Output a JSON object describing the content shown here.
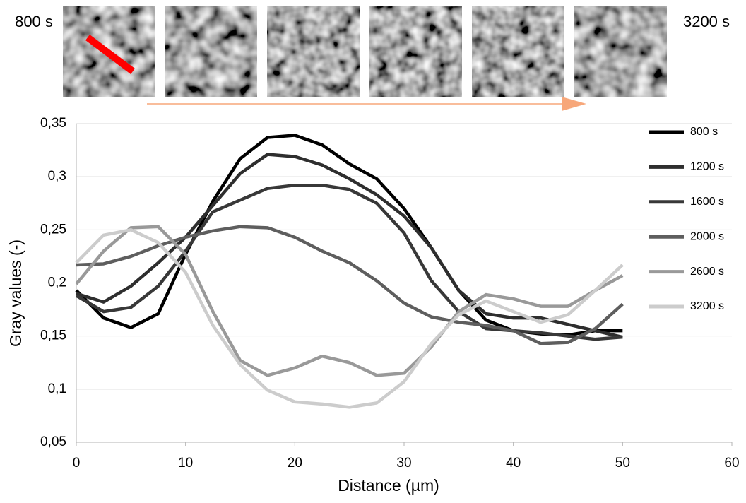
{
  "image_strip": {
    "start_label": "800 s",
    "end_label": "3200 s"
  },
  "chart_data": {
    "type": "line",
    "y_label": "Gray values (-)",
    "x_label": "Distance (µm)",
    "x": [
      0,
      2.5,
      5,
      7.5,
      10,
      12.5,
      15,
      17.5,
      20,
      22.5,
      25,
      27.5,
      30,
      32.5,
      35,
      37.5,
      40,
      42.5,
      45,
      47.5,
      50
    ],
    "series": [
      {
        "name": "800 s",
        "color": "#000000",
        "values": [
          0.193,
          0.167,
          0.158,
          0.171,
          0.227,
          0.277,
          0.317,
          0.337,
          0.339,
          0.33,
          0.312,
          0.298,
          0.27,
          0.233,
          0.193,
          0.165,
          0.155,
          0.152,
          0.151,
          0.155,
          0.155
        ]
      },
      {
        "name": "1200 s",
        "color": "#2e2e2e",
        "values": [
          0.19,
          0.182,
          0.197,
          0.219,
          0.243,
          0.273,
          0.303,
          0.321,
          0.319,
          0.311,
          0.298,
          0.283,
          0.263,
          0.233,
          0.193,
          0.171,
          0.167,
          0.167,
          0.161,
          0.155,
          0.149
        ]
      },
      {
        "name": "1600 s",
        "color": "#383838",
        "values": [
          0.188,
          0.173,
          0.177,
          0.197,
          0.23,
          0.267,
          0.278,
          0.289,
          0.292,
          0.292,
          0.288,
          0.275,
          0.247,
          0.202,
          0.173,
          0.157,
          0.155,
          0.153,
          0.15,
          0.147,
          0.149
        ]
      },
      {
        "name": "2000 s",
        "color": "#5e5e5e",
        "values": [
          0.217,
          0.218,
          0.225,
          0.235,
          0.243,
          0.249,
          0.253,
          0.252,
          0.243,
          0.23,
          0.219,
          0.202,
          0.181,
          0.168,
          0.163,
          0.16,
          0.155,
          0.143,
          0.144,
          0.157,
          0.18
        ]
      },
      {
        "name": "2600 s",
        "color": "#999999",
        "values": [
          0.199,
          0.23,
          0.252,
          0.253,
          0.227,
          0.173,
          0.127,
          0.113,
          0.12,
          0.131,
          0.125,
          0.113,
          0.115,
          0.14,
          0.173,
          0.189,
          0.185,
          0.178,
          0.178,
          0.193,
          0.207
        ]
      },
      {
        "name": "3200 s",
        "color": "#cccccc",
        "values": [
          0.219,
          0.245,
          0.25,
          0.238,
          0.21,
          0.16,
          0.123,
          0.099,
          0.088,
          0.086,
          0.083,
          0.087,
          0.107,
          0.143,
          0.17,
          0.183,
          0.173,
          0.163,
          0.17,
          0.193,
          0.217
        ]
      }
    ],
    "xlim": [
      0,
      60
    ],
    "xticks": [
      0,
      10,
      20,
      30,
      40,
      50,
      60
    ],
    "ylim": [
      0.05,
      0.35
    ],
    "yticks": [
      {
        "value": 0.05,
        "label": "0,05"
      },
      {
        "value": 0.1,
        "label": "0,1"
      },
      {
        "value": 0.15,
        "label": "0,15"
      },
      {
        "value": 0.2,
        "label": "0,2"
      },
      {
        "value": 0.25,
        "label": "0,25"
      },
      {
        "value": 0.3,
        "label": "0,3"
      },
      {
        "value": 0.35,
        "label": "0,35"
      }
    ],
    "grid": true,
    "legend": "right"
  }
}
